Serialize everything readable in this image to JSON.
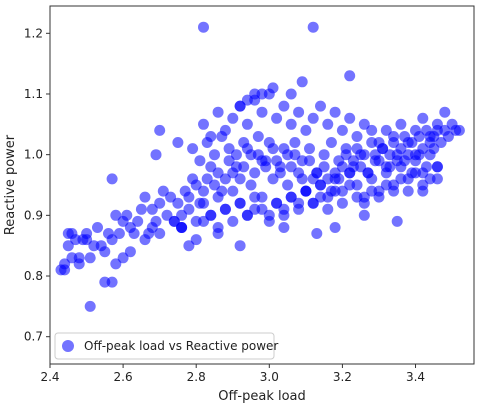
{
  "chart_data": {
    "type": "scatter",
    "title": "",
    "xlabel": "Off-peak load",
    "ylabel": "Reactive power",
    "xlim": [
      2.4,
      3.56
    ],
    "ylim": [
      0.655,
      1.245
    ],
    "xticks": [
      "2.4",
      "2.6",
      "2.8",
      "3.0",
      "3.2",
      "3.4"
    ],
    "yticks": [
      "0.7",
      "0.8",
      "0.9",
      "1.0",
      "1.1",
      "1.2"
    ],
    "grid": false,
    "legend": {
      "placement": "bottom-left",
      "entries": [
        "Off-peak load vs Reactive power"
      ]
    },
    "colors": {
      "marker": "#0000ff",
      "marker_opacity": 0.55,
      "frame": "#333333"
    },
    "series": [
      {
        "name": "Off-peak load vs Reactive power",
        "x": [
          2.43,
          2.44,
          2.45,
          2.46,
          2.47,
          2.48,
          2.49,
          2.5,
          2.52,
          2.53,
          2.54,
          2.55,
          2.56,
          2.57,
          2.58,
          2.59,
          2.6,
          2.61,
          2.62,
          2.63,
          2.64,
          2.65,
          2.66,
          2.67,
          2.68,
          2.69,
          2.7,
          2.71,
          2.72,
          2.73,
          2.74,
          2.75,
          2.76,
          2.77,
          2.78,
          2.79,
          2.8,
          2.81,
          2.82,
          2.83,
          2.84,
          2.85,
          2.86,
          2.87,
          2.88,
          2.89,
          2.9,
          2.91,
          2.92,
          2.93,
          2.94,
          2.95,
          2.96,
          2.97,
          2.98,
          2.99,
          3.0,
          3.01,
          3.02,
          3.03,
          3.04,
          3.05,
          3.06,
          3.07,
          3.08,
          3.09,
          3.1,
          3.11,
          3.12,
          3.13,
          3.14,
          3.15,
          3.16,
          3.17,
          3.18,
          3.19,
          3.2,
          3.21,
          3.22,
          3.23,
          3.24,
          3.25,
          3.26,
          3.27,
          3.28,
          3.29,
          3.3,
          3.31,
          3.32,
          3.33,
          3.34,
          3.35,
          3.36,
          3.37,
          3.38,
          3.39,
          3.4,
          3.41,
          3.42,
          3.43,
          3.44,
          3.45,
          3.46,
          3.47,
          3.48,
          3.49,
          3.5,
          3.51,
          3.52,
          2.44,
          2.46,
          2.48,
          2.51,
          2.55,
          2.58,
          2.62,
          2.66,
          2.7,
          2.74,
          2.76,
          2.78,
          2.8,
          2.82,
          2.84,
          2.86,
          2.88,
          2.9,
          2.92,
          2.94,
          2.96,
          2.98,
          3.0,
          3.02,
          3.04,
          3.06,
          3.08,
          3.1,
          3.12,
          3.14,
          3.16,
          3.18,
          3.2,
          3.22,
          3.24,
          3.26,
          3.28,
          3.3,
          3.32,
          3.34,
          3.36,
          3.38,
          3.4,
          3.42,
          3.44,
          3.46,
          2.82,
          2.84,
          2.86,
          2.88,
          2.9,
          2.92,
          2.94,
          2.96,
          2.98,
          3.0,
          3.02,
          3.04,
          3.06,
          3.08,
          3.1,
          3.12,
          3.14,
          3.16,
          3.18,
          3.2,
          3.22,
          3.24,
          3.26,
          3.28,
          3.3,
          3.32,
          3.34,
          3.36,
          3.38,
          3.4,
          3.42,
          3.44,
          3.46,
          3.48,
          2.79,
          2.81,
          2.83,
          2.85,
          2.87,
          2.89,
          2.91,
          2.93,
          2.95,
          2.97,
          2.99,
          3.01,
          3.03,
          3.05,
          3.07,
          3.09,
          3.11,
          3.13,
          3.15,
          3.17,
          3.19,
          3.21,
          3.23,
          3.25,
          3.27,
          3.29,
          3.31,
          3.33,
          3.35,
          3.37,
          3.39,
          3.41,
          3.43,
          3.45,
          2.76,
          2.78,
          2.8,
          2.82,
          2.84,
          2.86,
          2.88,
          2.9,
          2.92,
          2.94,
          2.96,
          2.98,
          3.0,
          3.02,
          3.04,
          3.06,
          3.08,
          3.1,
          3.12,
          3.14,
          3.16,
          3.18,
          3.2,
          3.22,
          3.24,
          3.26,
          3.28,
          3.3,
          3.32,
          3.34,
          3.36,
          3.38,
          3.4,
          3.42,
          3.44,
          3.46,
          2.82,
          3.12,
          3.22,
          3.09,
          2.98,
          2.96,
          2.94,
          3.06,
          2.92,
          3.01,
          2.7,
          2.75,
          2.69,
          2.57,
          2.51,
          2.57,
          2.45,
          3.35,
          3.46,
          3.13,
          2.5,
          2.68,
          2.86,
          2.92,
          2.6,
          2.76,
          3.04,
          3.18,
          3.26,
          3.42
        ],
        "y": [
          0.81,
          0.81,
          0.85,
          0.87,
          0.86,
          0.83,
          0.86,
          0.87,
          0.85,
          0.88,
          0.85,
          0.84,
          0.87,
          0.86,
          0.9,
          0.87,
          0.89,
          0.9,
          0.88,
          0.87,
          0.89,
          0.91,
          0.93,
          0.87,
          0.91,
          0.89,
          0.92,
          0.94,
          0.9,
          0.93,
          0.89,
          0.92,
          0.9,
          0.94,
          0.93,
          0.96,
          0.95,
          0.92,
          0.94,
          0.96,
          0.98,
          0.95,
          0.97,
          0.94,
          0.96,
          0.99,
          0.97,
          1.0,
          0.96,
          0.98,
          1.01,
          0.95,
          0.97,
          1.0,
          0.99,
          0.98,
          1.02,
          0.96,
          0.99,
          0.97,
          1.01,
          0.95,
          0.98,
          1.0,
          0.97,
          0.96,
          0.94,
          0.99,
          0.96,
          0.97,
          0.95,
          0.98,
          0.96,
          0.94,
          0.97,
          0.96,
          0.98,
          1.0,
          0.97,
          0.99,
          1.01,
          0.98,
          1.0,
          0.97,
          1.02,
          1.0,
          0.99,
          1.01,
          0.98,
          1.0,
          1.02,
          0.99,
          1.01,
          1.03,
          1.0,
          1.02,
          1.0,
          1.03,
          1.01,
          1.04,
          1.02,
          1.03,
          1.04,
          1.02,
          1.04,
          1.03,
          1.05,
          1.04,
          1.04,
          0.82,
          0.83,
          0.82,
          0.83,
          0.79,
          0.82,
          0.84,
          0.86,
          0.87,
          0.89,
          0.88,
          0.85,
          0.86,
          0.89,
          0.9,
          0.88,
          0.91,
          0.89,
          0.92,
          0.9,
          0.91,
          0.93,
          0.9,
          0.92,
          0.91,
          0.93,
          0.92,
          0.94,
          0.92,
          0.93,
          0.91,
          0.94,
          0.92,
          0.95,
          0.93,
          0.92,
          0.94,
          0.93,
          0.95,
          0.94,
          0.96,
          0.94,
          0.97,
          0.95,
          0.96,
          0.98,
          1.05,
          1.03,
          1.07,
          1.04,
          1.06,
          1.08,
          1.05,
          1.09,
          1.07,
          1.1,
          1.06,
          1.08,
          1.05,
          1.07,
          1.04,
          1.06,
          1.08,
          1.05,
          1.07,
          1.04,
          1.06,
          1.03,
          1.05,
          1.04,
          1.02,
          1.04,
          1.03,
          1.05,
          1.02,
          1.04,
          1.06,
          1.03,
          1.05,
          1.07,
          1.01,
          0.99,
          1.02,
          1.0,
          1.03,
          1.01,
          0.98,
          1.02,
          1.0,
          1.03,
          0.99,
          1.01,
          0.98,
          1.0,
          1.02,
          0.99,
          1.01,
          0.97,
          1.0,
          1.02,
          0.99,
          1.01,
          0.98,
          1.0,
          0.97,
          0.99,
          1.01,
          0.98,
          1.0,
          0.99,
          0.97,
          1.0,
          0.98,
          1.01,
          0.88,
          0.91,
          0.89,
          0.92,
          0.9,
          0.93,
          0.91,
          0.94,
          0.92,
          0.9,
          0.93,
          0.91,
          0.89,
          0.92,
          0.9,
          0.93,
          0.91,
          0.94,
          0.92,
          0.95,
          0.93,
          0.96,
          0.94,
          0.97,
          0.95,
          0.93,
          0.96,
          0.94,
          0.97,
          0.95,
          0.98,
          0.96,
          0.99,
          0.97,
          1.0,
          0.98,
          1.21,
          1.21,
          1.13,
          1.12,
          1.1,
          1.1,
          1.09,
          1.1,
          1.08,
          1.11,
          1.04,
          1.02,
          1.0,
          0.96,
          0.75,
          0.79,
          0.87,
          0.89,
          0.96,
          0.87,
          0.86,
          0.88,
          0.87,
          0.85,
          0.83,
          0.88,
          0.88,
          0.88,
          0.9,
          0.94
        ]
      }
    ]
  }
}
